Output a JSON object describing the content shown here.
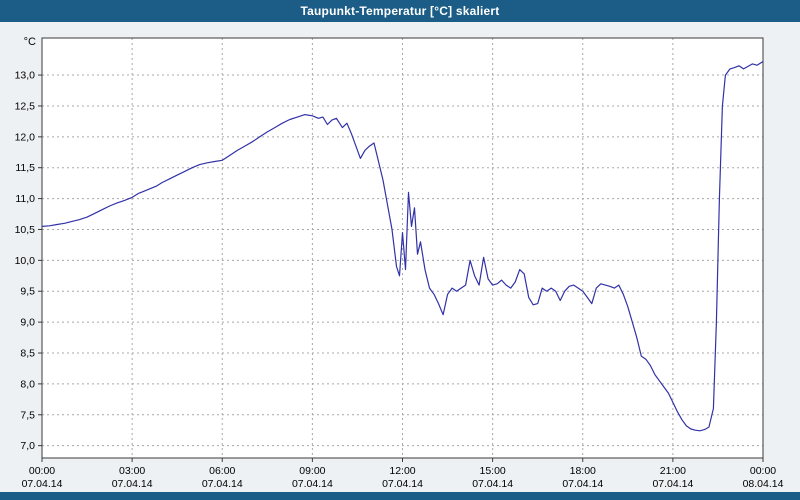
{
  "window": {
    "title": "Taupunkt-Temperatur [°C] skaliert"
  },
  "colors": {
    "titlebar": "#1b5d86",
    "background": "#eef1f4",
    "plot_bg": "#ffffff",
    "grid": "#a8a8a8",
    "frame": "#3a3a3a",
    "line": "#3232a8",
    "text": "#000000"
  },
  "chart_data": {
    "type": "line",
    "title": "Taupunkt-Temperatur [°C] skaliert",
    "xlabel": "",
    "ylabel": "°C",
    "xlim": [
      0,
      24
    ],
    "ylim": [
      6.8,
      13.6
    ],
    "grid": "dashed",
    "legend": "none",
    "x_ticks": [
      {
        "hour": 0,
        "time": "00:00",
        "date": "07.04.14"
      },
      {
        "hour": 3,
        "time": "03:00",
        "date": "07.04.14"
      },
      {
        "hour": 6,
        "time": "06:00",
        "date": "07.04.14"
      },
      {
        "hour": 9,
        "time": "09:00",
        "date": "07.04.14"
      },
      {
        "hour": 12,
        "time": "12:00",
        "date": "07.04.14"
      },
      {
        "hour": 15,
        "time": "15:00",
        "date": "07.04.14"
      },
      {
        "hour": 18,
        "time": "18:00",
        "date": "07.04.14"
      },
      {
        "hour": 21,
        "time": "21:00",
        "date": "07.04.14"
      },
      {
        "hour": 24,
        "time": "00:00",
        "date": "08.04.14"
      }
    ],
    "y_ticks": [
      {
        "value": 13.0,
        "label": "13,0"
      },
      {
        "value": 12.5,
        "label": "12,5"
      },
      {
        "value": 12.0,
        "label": "12,0"
      },
      {
        "value": 11.5,
        "label": "11,5"
      },
      {
        "value": 11.0,
        "label": "11,0"
      },
      {
        "value": 10.5,
        "label": "10,5"
      },
      {
        "value": 10.0,
        "label": "10,0"
      },
      {
        "value": 9.5,
        "label": "9,5"
      },
      {
        "value": 9.0,
        "label": "9,0"
      },
      {
        "value": 8.5,
        "label": "8,5"
      },
      {
        "value": 8.0,
        "label": "8,0"
      },
      {
        "value": 7.5,
        "label": "7,5"
      },
      {
        "value": 7.0,
        "label": "7,0"
      }
    ],
    "series": [
      {
        "name": "Taupunkt-Temperatur",
        "points": [
          [
            0,
            10.55
          ],
          [
            0.25,
            10.56
          ],
          [
            0.5,
            10.58
          ],
          [
            0.75,
            10.6
          ],
          [
            1,
            10.63
          ],
          [
            1.25,
            10.66
          ],
          [
            1.5,
            10.7
          ],
          [
            1.75,
            10.76
          ],
          [
            2,
            10.82
          ],
          [
            2.25,
            10.88
          ],
          [
            2.5,
            10.93
          ],
          [
            2.75,
            10.97
          ],
          [
            3,
            11.02
          ],
          [
            3.2,
            11.08
          ],
          [
            3.4,
            11.12
          ],
          [
            3.6,
            11.16
          ],
          [
            3.8,
            11.2
          ],
          [
            4,
            11.26
          ],
          [
            4.25,
            11.32
          ],
          [
            4.5,
            11.38
          ],
          [
            4.75,
            11.44
          ],
          [
            5,
            11.5
          ],
          [
            5.25,
            11.55
          ],
          [
            5.5,
            11.58
          ],
          [
            5.75,
            11.6
          ],
          [
            6,
            11.62
          ],
          [
            6.25,
            11.7
          ],
          [
            6.5,
            11.78
          ],
          [
            6.75,
            11.85
          ],
          [
            7,
            11.92
          ],
          [
            7.25,
            12.0
          ],
          [
            7.5,
            12.08
          ],
          [
            7.75,
            12.15
          ],
          [
            8,
            12.22
          ],
          [
            8.25,
            12.28
          ],
          [
            8.5,
            12.32
          ],
          [
            8.75,
            12.36
          ],
          [
            9,
            12.34
          ],
          [
            9.2,
            12.3
          ],
          [
            9.35,
            12.32
          ],
          [
            9.5,
            12.2
          ],
          [
            9.65,
            12.27
          ],
          [
            9.8,
            12.3
          ],
          [
            10,
            12.15
          ],
          [
            10.15,
            12.22
          ],
          [
            10.3,
            12.05
          ],
          [
            10.45,
            11.85
          ],
          [
            10.6,
            11.65
          ],
          [
            10.75,
            11.78
          ],
          [
            10.9,
            11.85
          ],
          [
            11.05,
            11.9
          ],
          [
            11.2,
            11.6
          ],
          [
            11.35,
            11.3
          ],
          [
            11.5,
            10.9
          ],
          [
            11.65,
            10.5
          ],
          [
            11.8,
            9.9
          ],
          [
            11.9,
            9.75
          ],
          [
            12,
            10.45
          ],
          [
            12.1,
            9.85
          ],
          [
            12.2,
            11.1
          ],
          [
            12.3,
            10.55
          ],
          [
            12.4,
            10.85
          ],
          [
            12.5,
            10.1
          ],
          [
            12.6,
            10.3
          ],
          [
            12.75,
            9.85
          ],
          [
            12.9,
            9.55
          ],
          [
            13.05,
            9.45
          ],
          [
            13.2,
            9.3
          ],
          [
            13.35,
            9.12
          ],
          [
            13.5,
            9.45
          ],
          [
            13.65,
            9.55
          ],
          [
            13.8,
            9.5
          ],
          [
            13.95,
            9.55
          ],
          [
            14.1,
            9.6
          ],
          [
            14.25,
            10.0
          ],
          [
            14.4,
            9.75
          ],
          [
            14.55,
            9.6
          ],
          [
            14.7,
            10.05
          ],
          [
            14.85,
            9.7
          ],
          [
            15,
            9.6
          ],
          [
            15.15,
            9.62
          ],
          [
            15.3,
            9.68
          ],
          [
            15.45,
            9.6
          ],
          [
            15.6,
            9.55
          ],
          [
            15.75,
            9.65
          ],
          [
            15.9,
            9.85
          ],
          [
            16.05,
            9.78
          ],
          [
            16.2,
            9.4
          ],
          [
            16.35,
            9.28
          ],
          [
            16.5,
            9.3
          ],
          [
            16.65,
            9.55
          ],
          [
            16.8,
            9.5
          ],
          [
            16.95,
            9.55
          ],
          [
            17.1,
            9.5
          ],
          [
            17.25,
            9.35
          ],
          [
            17.4,
            9.5
          ],
          [
            17.55,
            9.58
          ],
          [
            17.7,
            9.6
          ],
          [
            17.85,
            9.55
          ],
          [
            18,
            9.5
          ],
          [
            18.15,
            9.4
          ],
          [
            18.3,
            9.3
          ],
          [
            18.45,
            9.55
          ],
          [
            18.6,
            9.62
          ],
          [
            18.75,
            9.6
          ],
          [
            18.9,
            9.58
          ],
          [
            19.05,
            9.55
          ],
          [
            19.2,
            9.6
          ],
          [
            19.35,
            9.45
          ],
          [
            19.5,
            9.25
          ],
          [
            19.65,
            9.0
          ],
          [
            19.8,
            8.75
          ],
          [
            19.95,
            8.45
          ],
          [
            20.1,
            8.4
          ],
          [
            20.25,
            8.3
          ],
          [
            20.4,
            8.15
          ],
          [
            20.55,
            8.05
          ],
          [
            20.7,
            7.95
          ],
          [
            20.85,
            7.85
          ],
          [
            21,
            7.7
          ],
          [
            21.15,
            7.55
          ],
          [
            21.3,
            7.42
          ],
          [
            21.45,
            7.32
          ],
          [
            21.6,
            7.27
          ],
          [
            21.75,
            7.25
          ],
          [
            21.9,
            7.24
          ],
          [
            22.05,
            7.26
          ],
          [
            22.2,
            7.3
          ],
          [
            22.35,
            7.6
          ],
          [
            22.45,
            9.0
          ],
          [
            22.55,
            11.0
          ],
          [
            22.65,
            12.5
          ],
          [
            22.75,
            13.0
          ],
          [
            22.9,
            13.1
          ],
          [
            23.05,
            13.12
          ],
          [
            23.2,
            13.15
          ],
          [
            23.35,
            13.1
          ],
          [
            23.5,
            13.14
          ],
          [
            23.65,
            13.18
          ],
          [
            23.8,
            13.16
          ],
          [
            24,
            13.22
          ]
        ]
      }
    ]
  }
}
